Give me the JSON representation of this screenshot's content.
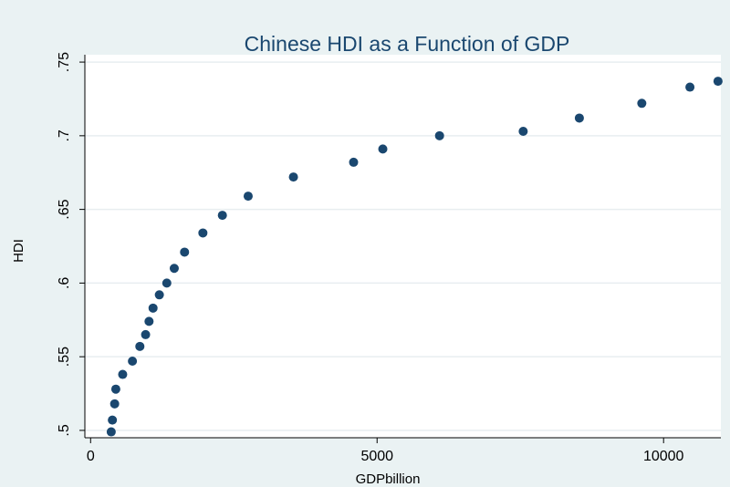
{
  "chart_data": {
    "type": "scatter",
    "title": "Chinese HDI as a Function of GDP",
    "xlabel": "GDPbillion",
    "ylabel": "HDI",
    "xlim": [
      -100,
      11000
    ],
    "ylim": [
      0.495,
      0.755
    ],
    "xticks": [
      0,
      5000,
      10000
    ],
    "xtick_labels": [
      "0",
      "5000",
      "10000"
    ],
    "yticks": [
      0.5,
      0.55,
      0.6,
      0.65,
      0.7,
      0.75
    ],
    "ytick_labels": [
      ".5",
      ".55",
      ".6",
      ".65",
      ".7",
      ".75"
    ],
    "grid": true,
    "marker_color": "#1a476f",
    "plot_background": "#ffffff",
    "page_background": "#eaf2f3",
    "points": [
      {
        "x": 360,
        "y": 0.499
      },
      {
        "x": 380,
        "y": 0.507
      },
      {
        "x": 420,
        "y": 0.518
      },
      {
        "x": 440,
        "y": 0.528
      },
      {
        "x": 560,
        "y": 0.538
      },
      {
        "x": 730,
        "y": 0.547
      },
      {
        "x": 860,
        "y": 0.557
      },
      {
        "x": 960,
        "y": 0.565
      },
      {
        "x": 1020,
        "y": 0.574
      },
      {
        "x": 1090,
        "y": 0.583
      },
      {
        "x": 1200,
        "y": 0.592
      },
      {
        "x": 1330,
        "y": 0.6
      },
      {
        "x": 1460,
        "y": 0.61
      },
      {
        "x": 1640,
        "y": 0.621
      },
      {
        "x": 1960,
        "y": 0.634
      },
      {
        "x": 2300,
        "y": 0.646
      },
      {
        "x": 2750,
        "y": 0.659
      },
      {
        "x": 3540,
        "y": 0.672
      },
      {
        "x": 4590,
        "y": 0.682
      },
      {
        "x": 5100,
        "y": 0.691
      },
      {
        "x": 6090,
        "y": 0.7
      },
      {
        "x": 7550,
        "y": 0.703
      },
      {
        "x": 8530,
        "y": 0.712
      },
      {
        "x": 9620,
        "y": 0.722
      },
      {
        "x": 10460,
        "y": 0.733
      },
      {
        "x": 10950,
        "y": 0.737
      }
    ]
  }
}
